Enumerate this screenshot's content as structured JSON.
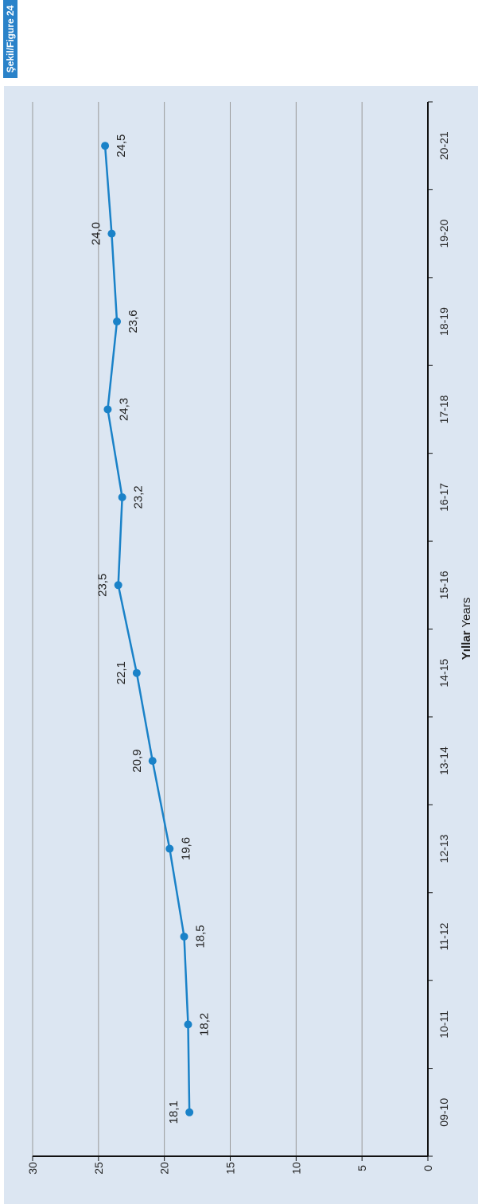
{
  "figure_tag": "Şekil/Figure 24",
  "chart_data": {
    "type": "line",
    "categories": [
      "09-10",
      "10-11",
      "11-12",
      "12-13",
      "13-14",
      "14-15",
      "15-16",
      "16-17",
      "17-18",
      "18-19",
      "19-20",
      "20-21"
    ],
    "series": [
      {
        "values": [
          18.1,
          18.2,
          18.5,
          19.6,
          20.9,
          22.1,
          23.5,
          23.2,
          24.3,
          23.6,
          24.0,
          24.5
        ]
      }
    ],
    "data_labels": [
      "18,1",
      "18,2",
      "18,5",
      "19,6",
      "20,9",
      "22,1",
      "23,5",
      "23,2",
      "24,3",
      "23,6",
      "24,0",
      "24,5"
    ],
    "y_ticks": [
      "0",
      "5",
      "10",
      "15",
      "20",
      "25",
      "30"
    ],
    "ylim": [
      0,
      30
    ],
    "xlabel_bold": "Yıllar",
    "xlabel_rest": " Years",
    "title": "",
    "grid": true,
    "colors": {
      "panel": "#dce6f2",
      "line": "#1a82c8",
      "grid": "#999999",
      "axis": "#111111",
      "tag": "#2a82c9"
    }
  }
}
